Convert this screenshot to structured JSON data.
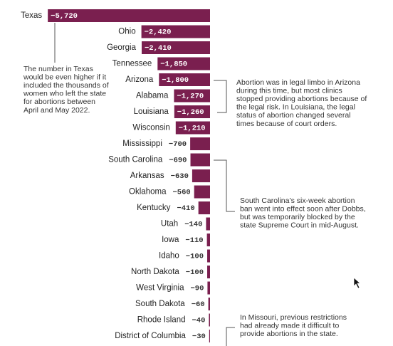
{
  "chart_data": {
    "type": "bar",
    "orientation": "horizontal",
    "categories": [
      "Texas",
      "Ohio",
      "Georgia",
      "Tennessee",
      "Arizona",
      "Alabama",
      "Louisiana",
      "Wisconsin",
      "Mississippi",
      "South Carolina",
      "Arkansas",
      "Oklahoma",
      "Kentucky",
      "Utah",
      "Iowa",
      "Idaho",
      "North Dakota",
      "West Virginia",
      "South Dakota",
      "Rhode Island",
      "District of Columbia"
    ],
    "values": [
      -5720,
      -2420,
      -2410,
      -1850,
      -1800,
      -1270,
      -1260,
      -1210,
      -700,
      -690,
      -630,
      -560,
      -410,
      -140,
      -110,
      -100,
      -100,
      -90,
      -60,
      -40,
      -30
    ],
    "value_labels": [
      "−5,720",
      "−2,420",
      "−2,410",
      "−1,850",
      "−1,800",
      "−1,270",
      "−1,260",
      "−1,210",
      "−700",
      "−690",
      "−630",
      "−560",
      "−410",
      "−140",
      "−110",
      "−100",
      "−100",
      "−90",
      "−60",
      "−40",
      "−30"
    ],
    "color": "#7a1f4f",
    "xlim": [
      -6000,
      0
    ],
    "annotations": [
      {
        "lines": [
          "The number in Texas",
          "would be even higher if it",
          "included the thousands of",
          "women who left the state",
          "for abortions between",
          "April and May 2022."
        ]
      },
      {
        "lines": [
          "Abortion was in legal limbo in Arizona",
          "during this time, but most clinics",
          "stopped providing abortions because of",
          "the legal risk. In Louisiana, the legal",
          "status of abortion changed several",
          "times because of court orders."
        ]
      },
      {
        "lines": [
          "South Carolina’s six-week abortion",
          "ban went into effect soon after Dobbs,",
          "but was temporarily blocked by the",
          "state Supreme Court in mid-August."
        ]
      },
      {
        "lines": [
          "In Missouri, previous restrictions",
          "had already made it difficult to",
          "provide abortions in the state."
        ]
      }
    ]
  }
}
